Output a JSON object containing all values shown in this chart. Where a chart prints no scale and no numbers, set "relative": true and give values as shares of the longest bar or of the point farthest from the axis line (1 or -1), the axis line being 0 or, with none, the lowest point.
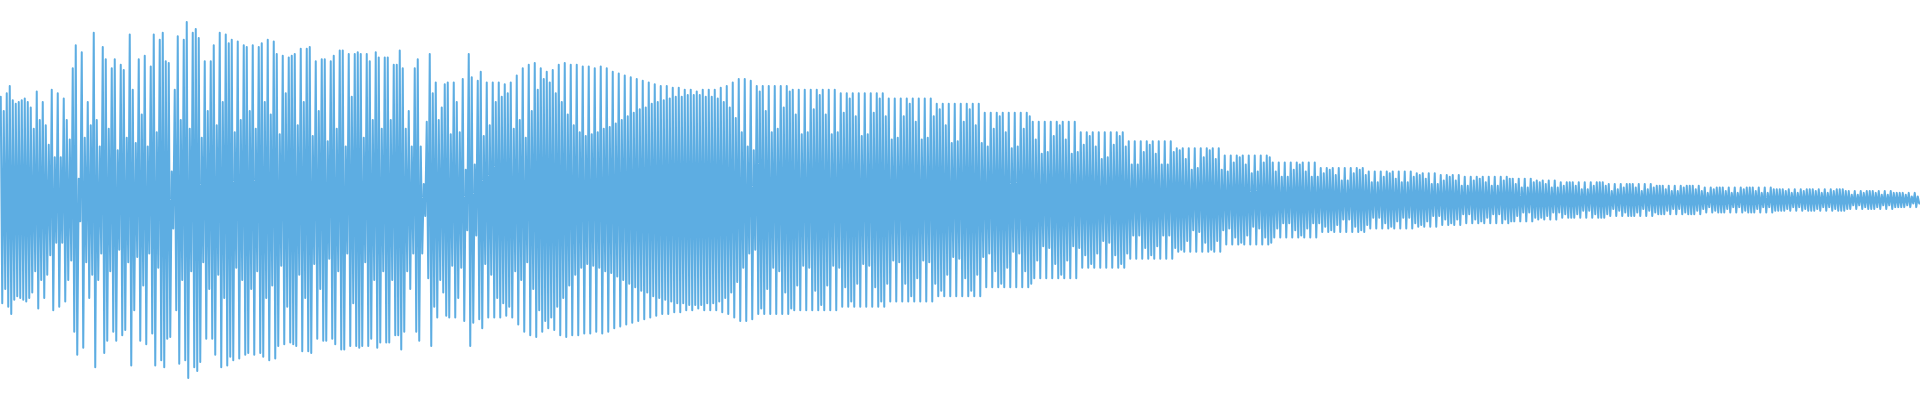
{
  "chart_data": {
    "type": "line",
    "relative": true,
    "color": "#5dade2",
    "categories": [
      null,
      null,
      null,
      null,
      null,
      null,
      null,
      null,
      null,
      null,
      null,
      null,
      null,
      null,
      null,
      null,
      null,
      null,
      null,
      null,
      null,
      null,
      null,
      null,
      null,
      null,
      null,
      null,
      null,
      null,
      null,
      null,
      null,
      null,
      null,
      null,
      null,
      null,
      null,
      null,
      null,
      null,
      null,
      null,
      null,
      null,
      null,
      null,
      null,
      null,
      null,
      null,
      null,
      null,
      null,
      null,
      null,
      null,
      null,
      null,
      null,
      null,
      null,
      null,
      null,
      null,
      null,
      null,
      null,
      null,
      null,
      null,
      null,
      null,
      null,
      null,
      null,
      null,
      null,
      null,
      null,
      null,
      null,
      null,
      null,
      null,
      null,
      null,
      null,
      null,
      null,
      null,
      null,
      null,
      null,
      null,
      null,
      null,
      null,
      null,
      null,
      null,
      null,
      null,
      null,
      null,
      null,
      null,
      null,
      null,
      null,
      null,
      null,
      null,
      null,
      null,
      null,
      null,
      null,
      null,
      null,
      null,
      null,
      null,
      null,
      null,
      null,
      null,
      null,
      null,
      null,
      null,
      null,
      null,
      null,
      null,
      null,
      null,
      null,
      null,
      null,
      null,
      null,
      null,
      null,
      null,
      null,
      null,
      null,
      null,
      null,
      null,
      null,
      null,
      null,
      null,
      null,
      null,
      null,
      null,
      null,
      null,
      null,
      null,
      null,
      null,
      null,
      null,
      null,
      null,
      null,
      null,
      null,
      null,
      null,
      null,
      null,
      null,
      null,
      null,
      null,
      null,
      null,
      null,
      null,
      null,
      null,
      null,
      null,
      null,
      null,
      null,
      null,
      null,
      null,
      null,
      null,
      null,
      null,
      null,
      null,
      null,
      null,
      null,
      null,
      null,
      null,
      null,
      null,
      null,
      null,
      null,
      null,
      null,
      null,
      null,
      null,
      null,
      null,
      null,
      null,
      null,
      null,
      null,
      null,
      null,
      null,
      null,
      null,
      null,
      null,
      null,
      null,
      null,
      null,
      null,
      null,
      null,
      null,
      null,
      null,
      null,
      null,
      null,
      null,
      null,
      null,
      null,
      null,
      null,
      null,
      null,
      null,
      null,
      null,
      null,
      null,
      null,
      null,
      null,
      null,
      null,
      null,
      null,
      null,
      null,
      null,
      null,
      null,
      null,
      null,
      null,
      null,
      null,
      null,
      null,
      null,
      null,
      null,
      null,
      null,
      null,
      null,
      null,
      null,
      null,
      null,
      null,
      null,
      null,
      null,
      null,
      null,
      null,
      null,
      null,
      null,
      null,
      null,
      null,
      null,
      null,
      null,
      null,
      null,
      null,
      null,
      null,
      null,
      null,
      null,
      null,
      null,
      null,
      null,
      null,
      null,
      null,
      null,
      null,
      null,
      null,
      null,
      null,
      null,
      null,
      null,
      null,
      null,
      null,
      null,
      null,
      null,
      null,
      null,
      null,
      null,
      null,
      null,
      null,
      null,
      null,
      null,
      null,
      null,
      null,
      null,
      null,
      null,
      null,
      null,
      null,
      null,
      null,
      null,
      null,
      null,
      null,
      null,
      null,
      null,
      null,
      null,
      null,
      null,
      null,
      null,
      null,
      null,
      null,
      null,
      null,
      null,
      null,
      null,
      null,
      null,
      null,
      null,
      null,
      null,
      null,
      null,
      null,
      null,
      null,
      null,
      null,
      null,
      null,
      null,
      null,
      null,
      null,
      null,
      null,
      null,
      null,
      null,
      null,
      null,
      null,
      null,
      null,
      null,
      null,
      null,
      null,
      null,
      null,
      null,
      null,
      null,
      null,
      null,
      null,
      null,
      null,
      null,
      null,
      null,
      null,
      null,
      null,
      null,
      null,
      null,
      null,
      null,
      null,
      null,
      null,
      null,
      null,
      null,
      null,
      null,
      null,
      null,
      null,
      null,
      null,
      null,
      null,
      null,
      null,
      null,
      null,
      null,
      null,
      null,
      null,
      null,
      null,
      null,
      null,
      null,
      null,
      null,
      null,
      null,
      null,
      null,
      null,
      null,
      null,
      null,
      null,
      null,
      null,
      null,
      null,
      null,
      null,
      null,
      null,
      null,
      null,
      null,
      null,
      null,
      null,
      null,
      null,
      null,
      null,
      null,
      null,
      null,
      null,
      null,
      null,
      null,
      null,
      null,
      null,
      null,
      null,
      null,
      null,
      null,
      null,
      null,
      null,
      null,
      null,
      null,
      null,
      null,
      null,
      null,
      null,
      null,
      null,
      null,
      null,
      null,
      null,
      null,
      null,
      null,
      null,
      null,
      null,
      null,
      null,
      null,
      null,
      null,
      null,
      null,
      null,
      null,
      null,
      null,
      null,
      null,
      null,
      null,
      null,
      null,
      null,
      null,
      null,
      null,
      null,
      null,
      null,
      null,
      null,
      null,
      null,
      null,
      null,
      null,
      null,
      null,
      null,
      null,
      null,
      null,
      null,
      null,
      null,
      null,
      null,
      null,
      null,
      null,
      null,
      null,
      null,
      null,
      null,
      null,
      null,
      null,
      null,
      null,
      null,
      null,
      null,
      null,
      null,
      null,
      null,
      null,
      null,
      null,
      null,
      null,
      null,
      null,
      null,
      null,
      null,
      null,
      null,
      null,
      null,
      null,
      null,
      null,
      null,
      null,
      null,
      null,
      null,
      null,
      null,
      null,
      null,
      null,
      null,
      null,
      null,
      null,
      null,
      null,
      null,
      null,
      null,
      null,
      null,
      null,
      null,
      null,
      null,
      null,
      null,
      null,
      null,
      null,
      null,
      null,
      null,
      null,
      null,
      null,
      null,
      null,
      null,
      null,
      null,
      null,
      null,
      null,
      null,
      null,
      null,
      null,
      null,
      null,
      null,
      null,
      null,
      null,
      null,
      null,
      null,
      null,
      null,
      null,
      null,
      null,
      null,
      null,
      null,
      null,
      null,
      null,
      null,
      null,
      null,
      null,
      null,
      null,
      null,
      null,
      null,
      null,
      null,
      null,
      null,
      null,
      null,
      null,
      null,
      null,
      null,
      null,
      null,
      null,
      null,
      null,
      null,
      null,
      null,
      null,
      null,
      null,
      null,
      null,
      null,
      null,
      null,
      null,
      null,
      null,
      null,
      null,
      null,
      null,
      null,
      null,
      null,
      null,
      null,
      null,
      null,
      null,
      null,
      null,
      null,
      null,
      null,
      null,
      null,
      null,
      null,
      null,
      null,
      null,
      null,
      null,
      null,
      null,
      null,
      null,
      null,
      null,
      null,
      null,
      null,
      null,
      null,
      null,
      null,
      null,
      null,
      null,
      null,
      null,
      null,
      null,
      null,
      null,
      null,
      null,
      null,
      null,
      null,
      null,
      null,
      null,
      null,
      null,
      null,
      null,
      null,
      null,
      null,
      null,
      null,
      null,
      null,
      null,
      null,
      null,
      null,
      null,
      null,
      null,
      null,
      null,
      null,
      null,
      null,
      null,
      null,
      null,
      null,
      null,
      null,
      null,
      null,
      null,
      null,
      null,
      null,
      null,
      null,
      null,
      null,
      null,
      null,
      null,
      null,
      null,
      null,
      null,
      null,
      null,
      null,
      null,
      null,
      null,
      null,
      null,
      null,
      null,
      null,
      null,
      null,
      null,
      null,
      null,
      null,
      null,
      null,
      null,
      null,
      null,
      null,
      null,
      null,
      null,
      null,
      null,
      null,
      null,
      null,
      null,
      null,
      null,
      null,
      null,
      null,
      null,
      null,
      null,
      null,
      null,
      null,
      null,
      null,
      null,
      null,
      null,
      null,
      null,
      null,
      null,
      null,
      null,
      null,
      null,
      null,
      null,
      null,
      null,
      null,
      null,
      null,
      null,
      null,
      null,
      null,
      null,
      null,
      null,
      null,
      null,
      null,
      null,
      null,
      null,
      null,
      null,
      null,
      null,
      null,
      null,
      null,
      null,
      null,
      null,
      null,
      null,
      null,
      null,
      null,
      null,
      null,
      null,
      null,
      null,
      null,
      null,
      null,
      null,
      null,
      null,
      null,
      null,
      null,
      null,
      null,
      null,
      null,
      null,
      null,
      null,
      null,
      null,
      null,
      null,
      null,
      null,
      null,
      null,
      null,
      null,
      null,
      null,
      null,
      null,
      null,
      null,
      null,
      null,
      null,
      null,
      null,
      null,
      null,
      null,
      null,
      null,
      null,
      null,
      null,
      null,
      null,
      null,
      null,
      null,
      null,
      null,
      null,
      null,
      null,
      null,
      null,
      null,
      null,
      null,
      null,
      null,
      null,
      null,
      null,
      null,
      null,
      null,
      null,
      null,
      null,
      null,
      null,
      null,
      null,
      null,
      null,
      null,
      null,
      null,
      null,
      null,
      null,
      null,
      null,
      null,
      null,
      null,
      null,
      null,
      null,
      null,
      null,
      null,
      null,
      null,
      null,
      null,
      null,
      null,
      null,
      null,
      null,
      null,
      null,
      null,
      null,
      null,
      null,
      null,
      null,
      null,
      null,
      null,
      null,
      null,
      null,
      null,
      null,
      null,
      null,
      null,
      null,
      null,
      null,
      null,
      null,
      null,
      null,
      null,
      null,
      null,
      null,
      null,
      null,
      null,
      null,
      null,
      null,
      null,
      null,
      null,
      null,
      null,
      null,
      null,
      null,
      null,
      null,
      null,
      null,
      null,
      null,
      null,
      null,
      null,
      null,
      null,
      null,
      null,
      null,
      null,
      null,
      null,
      null,
      null,
      null,
      null,
      null,
      null,
      null,
      null,
      null,
      null,
      null,
      null,
      null,
      null,
      null,
      null,
      null,
      null,
      null,
      null,
      null,
      null,
      null,
      null,
      null,
      null,
      null,
      null,
      null,
      null,
      null,
      null,
      null,
      null,
      null,
      null,
      null,
      null,
      null,
      null,
      null,
      null,
      null,
      null,
      null,
      null,
      null,
      null,
      null,
      null,
      null,
      null,
      null,
      null,
      null,
      null,
      null,
      null,
      null,
      null,
      null,
      null,
      null,
      null,
      null,
      null,
      null,
      null,
      null,
      null,
      null,
      null,
      null,
      null,
      null,
      null,
      null,
      null,
      null,
      null,
      null,
      null,
      null,
      null,
      null,
      null,
      null,
      null,
      null,
      null,
      null,
      null,
      null,
      null,
      null,
      null,
      null,
      null,
      null,
      null,
      null,
      null,
      null,
      null,
      null,
      null,
      null,
      null,
      null,
      null,
      null,
      null,
      null,
      null,
      null,
      null,
      null,
      null,
      null,
      null,
      null,
      null,
      null,
      null,
      null,
      null,
      null,
      null,
      null,
      null,
      null,
      null,
      null,
      null,
      null,
      null,
      null,
      null,
      null,
      null,
      null,
      null,
      null,
      null,
      null,
      null,
      null,
      null,
      null,
      null,
      null,
      null,
      null,
      null,
      null,
      null,
      null,
      null,
      null,
      null,
      null,
      null,
      null,
      null,
      null,
      null,
      null,
      null,
      null,
      null,
      null,
      null,
      null,
      null,
      null,
      null,
      null,
      null,
      null,
      null,
      null,
      null,
      null,
      null,
      null,
      null,
      null,
      null,
      null,
      null,
      null,
      null,
      null,
      null,
      null,
      null,
      null,
      null,
      null,
      null,
      null,
      null,
      null,
      null,
      null,
      null,
      null,
      null,
      null
    ],
    "values": [
      0.79,
      0.21,
      0.75,
      0.25,
      0.8,
      0.2,
      0.82,
      0.18,
      0.78,
      0.22,
      0.77,
      0.23,
      0.775,
      0.225,
      0.78,
      0.22,
      0.785,
      0.215,
      0.775,
      0.225,
      0.76,
      0.24,
      0.7,
      0.3,
      0.805,
      0.195,
      0.725,
      0.275,
      0.775,
      0.225,
      0.71,
      0.29,
      0.655,
      0.345,
      0.81,
      0.19,
      0.62,
      0.38,
      0.8,
      0.2,
      0.62,
      0.38,
      0.785,
      0.215,
      0.725,
      0.275,
      0.67,
      0.33,
      0.87,
      0.13,
      0.935,
      0.065,
      0.56,
      0.44,
      0.915,
      0.085,
      0.675,
      0.325,
      0.775,
      0.225,
      0.71,
      0.29,
      0.97,
      0.03,
      0.725,
      0.275,
      0.65,
      0.35,
      0.93,
      0.07,
      0.895,
      0.105,
      0.7,
      0.3,
      0.87,
      0.13,
      0.895,
      0.105,
      0.64,
      0.36,
      0.88,
      0.12,
      0.865,
      0.135,
      0.675,
      0.325,
      0.965,
      0.035,
      0.81,
      0.19,
      0.66,
      0.34,
      0.895,
      0.105,
      0.74,
      0.26,
      0.905,
      0.095,
      0.65,
      0.35,
      0.875,
      0.125,
      0.965,
      0.035,
      0.69,
      0.31,
      0.95,
      0.05,
      0.97,
      0.03,
      0.89,
      0.11,
      0.885,
      0.115,
      0.58,
      0.42,
      0.81,
      0.19,
      0.96,
      0.04,
      0.725,
      0.275,
      0.95,
      0.05,
      1,
      0,
      0.7,
      0.3,
      0.97,
      0.03,
      0.98,
      0.02,
      0.955,
      0.045,
      0.675,
      0.325,
      0.89,
      0.11,
      0.75,
      0.25,
      0.89,
      0.11,
      0.935,
      0.065,
      0.71,
      0.29,
      0.97,
      0.03,
      0.775,
      0.225,
      0.965,
      0.035,
      0.94,
      0.06,
      0.95,
      0.05,
      0.69,
      0.31,
      0.945,
      0.055,
      0.725,
      0.275,
      0.935,
      0.065,
      0.93,
      0.07,
      0.75,
      0.25,
      0.935,
      0.065,
      0.7,
      0.3,
      0.93,
      0.07,
      0.94,
      0.06,
      0.775,
      0.225,
      0.95,
      0.05,
      0.74,
      0.26,
      0.945,
      0.055,
      0.91,
      0.09,
      0.685,
      0.315,
      0.905,
      0.095,
      0.8,
      0.2,
      0.9,
      0.1,
      0.905,
      0.095,
      0.91,
      0.09,
      0.71,
      0.29,
      0.925,
      0.075,
      0.775,
      0.225,
      0.925,
      0.075,
      0.93,
      0.07,
      0.68,
      0.32,
      0.89,
      0.11,
      0.75,
      0.25,
      0.895,
      0.105,
      0.895,
      0.105,
      0.665,
      0.335,
      0.89,
      0.11,
      0.905,
      0.095,
      0.7,
      0.3,
      0.92,
      0.08,
      0.92,
      0.08,
      0.65,
      0.35,
      0.91,
      0.09,
      0.79,
      0.21,
      0.91,
      0.09,
      0.915,
      0.085,
      0.91,
      0.09,
      0.675,
      0.325,
      0.91,
      0.09,
      0.89,
      0.11,
      0.725,
      0.275,
      0.915,
      0.085,
      0.9,
      0.1,
      0.7,
      0.3,
      0.9,
      0.1,
      0.9,
      0.1,
      0.725,
      0.275,
      0.88,
      0.12,
      0.88,
      0.12,
      0.92,
      0.08,
      0.87,
      0.13,
      0.7,
      0.3,
      0.75,
      0.25,
      0.65,
      0.35,
      0.87,
      0.13,
      0.895,
      0.105,
      0.65,
      0.35,
      0.545,
      0.455,
      0.72,
      0.28,
      0.91,
      0.09,
      0.8,
      0.2,
      0.83,
      0.17,
      0.725,
      0.275,
      0.76,
      0.24,
      0.825,
      0.175,
      0.83,
      0.17,
      0.685,
      0.315,
      0.83,
      0.17,
      0.775,
      0.225,
      0.69,
      0.31,
      0.84,
      0.16,
      0.585,
      0.415,
      0.91,
      0.09,
      0.845,
      0.155,
      0.6,
      0.4,
      0.835,
      0.165,
      0.86,
      0.14,
      0.68,
      0.32,
      0.83,
      0.17,
      0.71,
      0.29,
      0.83,
      0.17,
      0.775,
      0.225,
      0.83,
      0.17,
      0.79,
      0.21,
      0.825,
      0.175,
      0.8,
      0.2,
      0.83,
      0.17,
      0.7,
      0.3,
      0.85,
      0.15,
      0.725,
      0.275,
      0.87,
      0.13,
      0.675,
      0.325,
      0.88,
      0.12,
      0.75,
      0.25,
      0.885,
      0.115,
      0.81,
      0.19,
      0.87,
      0.13,
      0.84,
      0.16,
      0.86,
      0.14,
      0.83,
      0.17,
      0.865,
      0.135,
      0.8,
      0.2,
      0.88,
      0.12,
      0.775,
      0.225,
      0.885,
      0.115,
      0.74,
      0.26,
      0.88,
      0.12,
      0.71,
      0.29,
      0.88,
      0.12,
      0.69,
      0.31,
      0.875,
      0.125,
      0.68,
      0.32,
      0.875,
      0.125,
      0.685,
      0.315,
      0.87,
      0.13,
      0.69,
      0.31,
      0.875,
      0.125,
      0.7,
      0.3,
      0.87,
      0.13,
      0.705,
      0.295,
      0.86,
      0.14,
      0.715,
      0.285,
      0.855,
      0.145,
      0.725,
      0.275,
      0.85,
      0.15,
      0.735,
      0.265,
      0.845,
      0.155,
      0.745,
      0.255,
      0.84,
      0.16,
      0.755,
      0.245,
      0.835,
      0.165,
      0.76,
      0.24,
      0.83,
      0.17,
      0.77,
      0.23,
      0.825,
      0.175,
      0.775,
      0.225,
      0.82,
      0.18,
      0.78,
      0.22,
      0.82,
      0.18,
      0.785,
      0.215,
      0.815,
      0.185,
      0.79,
      0.21,
      0.815,
      0.185,
      0.79,
      0.21,
      0.81,
      0.19,
      0.795,
      0.205,
      0.81,
      0.19,
      0.795,
      0.205,
      0.805,
      0.195,
      0.795,
      0.205,
      0.81,
      0.19,
      0.79,
      0.21,
      0.81,
      0.19,
      0.79,
      0.21,
      0.81,
      0.19,
      0.785,
      0.215,
      0.815,
      0.185,
      0.775,
      0.225,
      0.82,
      0.18,
      0.76,
      0.24,
      0.83,
      0.17,
      0.73,
      0.27,
      0.84,
      0.16,
      0.69,
      0.31,
      0.84,
      0.16,
      0.65,
      0.35,
      0.835,
      0.165,
      0.64,
      0.36,
      0.82,
      0.18,
      0.805,
      0.195,
      0.82,
      0.18,
      0.75,
      0.25,
      0.82,
      0.18,
      0.69,
      0.31,
      0.82,
      0.18,
      0.7,
      0.3,
      0.82,
      0.18,
      0.76,
      0.24,
      0.82,
      0.18,
      0.805,
      0.195,
      0.81,
      0.19,
      0.74,
      0.26,
      0.81,
      0.19,
      0.685,
      0.315,
      0.81,
      0.19,
      0.69,
      0.31,
      0.81,
      0.19,
      0.755,
      0.245,
      0.81,
      0.19,
      0.795,
      0.205,
      0.81,
      0.19,
      0.74,
      0.26,
      0.81,
      0.19,
      0.685,
      0.315,
      0.81,
      0.19,
      0.69,
      0.31,
      0.8,
      0.2,
      0.745,
      0.255,
      0.8,
      0.2,
      0.785,
      0.215,
      0.8,
      0.2,
      0.735,
      0.265,
      0.8,
      0.2,
      0.68,
      0.32,
      0.8,
      0.2,
      0.685,
      0.315,
      0.8,
      0.2,
      0.745,
      0.255,
      0.8,
      0.2,
      0.785,
      0.215,
      0.8,
      0.2,
      0.735,
      0.265,
      0.785,
      0.215,
      0.67,
      0.33,
      0.785,
      0.215,
      0.675,
      0.325,
      0.785,
      0.215,
      0.735,
      0.265,
      0.785,
      0.215,
      0.77,
      0.23,
      0.785,
      0.215,
      0.72,
      0.28,
      0.785,
      0.215,
      0.67,
      0.33,
      0.785,
      0.215,
      0.675,
      0.325,
      0.785,
      0.215,
      0.735,
      0.265,
      0.77,
      0.23,
      0.755,
      0.245,
      0.77,
      0.23,
      0.71,
      0.29,
      0.77,
      0.23,
      0.66,
      0.34,
      0.77,
      0.23,
      0.665,
      0.335,
      0.77,
      0.23,
      0.72,
      0.28,
      0.77,
      0.23,
      0.755,
      0.245,
      0.77,
      0.23,
      0.71,
      0.29,
      0.77,
      0.23,
      0.66,
      0.34,
      0.745,
      0.255,
      0.65,
      0.35,
      0.745,
      0.255,
      0.7,
      0.3,
      0.745,
      0.255,
      0.735,
      0.265,
      0.745,
      0.255,
      0.69,
      0.31,
      0.745,
      0.255,
      0.645,
      0.355,
      0.745,
      0.255,
      0.65,
      0.35,
      0.745,
      0.255,
      0.7,
      0.3,
      0.745,
      0.255,
      0.735,
      0.265,
      0.72,
      0.28,
      0.67,
      0.33,
      0.72,
      0.28,
      0.63,
      0.37,
      0.72,
      0.28,
      0.635,
      0.365,
      0.72,
      0.28,
      0.68,
      0.32,
      0.72,
      0.28,
      0.71,
      0.29,
      0.72,
      0.28,
      0.67,
      0.33,
      0.72,
      0.28,
      0.63,
      0.37,
      0.72,
      0.28,
      0.635,
      0.365,
      0.69,
      0.31,
      0.655,
      0.345,
      0.69,
      0.31,
      0.68,
      0.32,
      0.69,
      0.31,
      0.65,
      0.35,
      0.69,
      0.31,
      0.615,
      0.385,
      0.69,
      0.31,
      0.62,
      0.38,
      0.69,
      0.31,
      0.655,
      0.345,
      0.69,
      0.31,
      0.68,
      0.32,
      0.69,
      0.31,
      0.65,
      0.35,
      0.665,
      0.335,
      0.6,
      0.4,
      0.665,
      0.335,
      0.6,
      0.4,
      0.665,
      0.335,
      0.635,
      0.365,
      0.665,
      0.335,
      0.655,
      0.345,
      0.665,
      0.335,
      0.63,
      0.37,
      0.665,
      0.335,
      0.6,
      0.4,
      0.665,
      0.335,
      0.6,
      0.4,
      0.665,
      0.335,
      0.635,
      0.365,
      0.645,
      0.355,
      0.64,
      0.36,
      0.645,
      0.355,
      0.615,
      0.385,
      0.645,
      0.355,
      0.585,
      0.415,
      0.645,
      0.355,
      0.59,
      0.41,
      0.645,
      0.355,
      0.62,
      0.38,
      0.645,
      0.355,
      0.64,
      0.36,
      0.645,
      0.355,
      0.615,
      0.385,
      0.645,
      0.355,
      0.585,
      0.415,
      0.625,
      0.375,
      0.58,
      0.42,
      0.625,
      0.375,
      0.605,
      0.395,
      0.625,
      0.375,
      0.62,
      0.38,
      0.625,
      0.375,
      0.6,
      0.4,
      0.625,
      0.375,
      0.575,
      0.425,
      0.625,
      0.375,
      0.58,
      0.42,
      0.625,
      0.375,
      0.605,
      0.395,
      0.625,
      0.375,
      0.62,
      0.38,
      0.605,
      0.395,
      0.58,
      0.42,
      0.605,
      0.395,
      0.565,
      0.435,
      0.605,
      0.395,
      0.565,
      0.435,
      0.605,
      0.395,
      0.585,
      0.415,
      0.605,
      0.395,
      0.6,
      0.4,
      0.605,
      0.395,
      0.58,
      0.42,
      0.605,
      0.395,
      0.565,
      0.435,
      0.605,
      0.395,
      0.565,
      0.435,
      0.59,
      0.41,
      0.575,
      0.425,
      0.59,
      0.41,
      0.585,
      0.415,
      0.59,
      0.41,
      0.57,
      0.43,
      0.59,
      0.41,
      0.555,
      0.445,
      0.59,
      0.41,
      0.555,
      0.445,
      0.59,
      0.41,
      0.575,
      0.425,
      0.59,
      0.41,
      0.585,
      0.415,
      0.59,
      0.41,
      0.57,
      0.43,
      0.58,
      0.42,
      0.55,
      0.45,
      0.58,
      0.42,
      0.55,
      0.45,
      0.58,
      0.42,
      0.565,
      0.435,
      0.58,
      0.42,
      0.575,
      0.425,
      0.58,
      0.42,
      0.56,
      0.44,
      0.58,
      0.42,
      0.55,
      0.45,
      0.58,
      0.42,
      0.55,
      0.45,
      0.58,
      0.42,
      0.565,
      0.435,
      0.575,
      0.425,
      0.57,
      0.43,
      0.575,
      0.425,
      0.56,
      0.44,
      0.575,
      0.425,
      0.545,
      0.455,
      0.575,
      0.425,
      0.545,
      0.455,
      0.57,
      0.43,
      0.555,
      0.445,
      0.57,
      0.43,
      0.565,
      0.435,
      0.57,
      0.43,
      0.555,
      0.445,
      0.57,
      0.43,
      0.54,
      0.46,
      0.565,
      0.435,
      0.54,
      0.46,
      0.565,
      0.435,
      0.555,
      0.445,
      0.565,
      0.435,
      0.56,
      0.44,
      0.565,
      0.435,
      0.55,
      0.45,
      0.565,
      0.435,
      0.54,
      0.46,
      0.565,
      0.435,
      0.54,
      0.46,
      0.565,
      0.435,
      0.555,
      0.445,
      0.565,
      0.435,
      0.56,
      0.44,
      0.56,
      0.44,
      0.545,
      0.455,
      0.56,
      0.44,
      0.535,
      0.465,
      0.56,
      0.44,
      0.535,
      0.465,
      0.56,
      0.44,
      0.55,
      0.45,
      0.555,
      0.445,
      0.55,
      0.45,
      0.555,
      0.445,
      0.545,
      0.455,
      0.555,
      0.445,
      0.535,
      0.465,
      0.555,
      0.445,
      0.535,
      0.465,
      0.55,
      0.45,
      0.54,
      0.46,
      0.55,
      0.45,
      0.55,
      0.45,
      0.55,
      0.45,
      0.54,
      0.46,
      0.55,
      0.45,
      0.53,
      0.47,
      0.55,
      0.45,
      0.53,
      0.47,
      0.55,
      0.45,
      0.54,
      0.46,
      0.55,
      0.45,
      0.55,
      0.45,
      0.55,
      0.45,
      0.54,
      0.46,
      0.545,
      0.455,
      0.525,
      0.475,
      0.545,
      0.455,
      0.53,
      0.47,
      0.545,
      0.455,
      0.535,
      0.465,
      0.545,
      0.455,
      0.545,
      0.455,
      0.545,
      0.455,
      0.535,
      0.465,
      0.545,
      0.455,
      0.525,
      0.475,
      0.545,
      0.455,
      0.53,
      0.47,
      0.545,
      0.455,
      0.535,
      0.465,
      0.54,
      0.46,
      0.54,
      0.46,
      0.54,
      0.46,
      0.53,
      0.47,
      0.54,
      0.46,
      0.525,
      0.475,
      0.54,
      0.46,
      0.525,
      0.475,
      0.54,
      0.46,
      0.535,
      0.465,
      0.54,
      0.46,
      0.54,
      0.46,
      0.54,
      0.46,
      0.53,
      0.47,
      0.54,
      0.46,
      0.525,
      0.475,
      0.535,
      0.465,
      0.52,
      0.48,
      0.535,
      0.465,
      0.53,
      0.47,
      0.535,
      0.465,
      0.535,
      0.465,
      0.535,
      0.465,
      0.525,
      0.475,
      0.535,
      0.465,
      0.52,
      0.48,
      0.535,
      0.465,
      0.52,
      0.48,
      0.535,
      0.465,
      0.53,
      0.47,
      0.535,
      0.465,
      0.535,
      0.465,
      0.535,
      0.465,
      0.525,
      0.475,
      0.535,
      0.465,
      0.52,
      0.48,
      0.535,
      0.465,
      0.52,
      0.48,
      0.535,
      0.465,
      0.53,
      0.47,
      0.53,
      0.47,
      0.53,
      0.47,
      0.53,
      0.47,
      0.525,
      0.475,
      0.53,
      0.47,
      0.52,
      0.48,
      0.53,
      0.47,
      0.52,
      0.48,
      0.53,
      0.47,
      0.525,
      0.475,
      0.53,
      0.47,
      0.53,
      0.47,
      0.53,
      0.47,
      0.525,
      0.475,
      0.53,
      0.47,
      0.52,
      0.48,
      0.53,
      0.47,
      0.52,
      0.48,
      0.53,
      0.47,
      0.525,
      0.475,
      0.53,
      0.47,
      0.53,
      0.47,
      0.53,
      0.47,
      0.525,
      0.475,
      0.525,
      0.475,
      0.515,
      0.485,
      0.525,
      0.475,
      0.515,
      0.485,
      0.525,
      0.475,
      0.52,
      0.48,
      0.525,
      0.475,
      0.525,
      0.475,
      0.525,
      0.475,
      0.52,
      0.48,
      0.525,
      0.475,
      0.515,
      0.485,
      0.525,
      0.475,
      0.515,
      0.485,
      0.525,
      0.475,
      0.52,
      0.48,
      0.52,
      0.48,
      0.52,
      0.48,
      0.52,
      0.48,
      0.515,
      0.485,
      0.52,
      0.48,
      0.51,
      0.49,
      0.52,
      0.48,
      0.51,
      0.49
    ]
  }
}
